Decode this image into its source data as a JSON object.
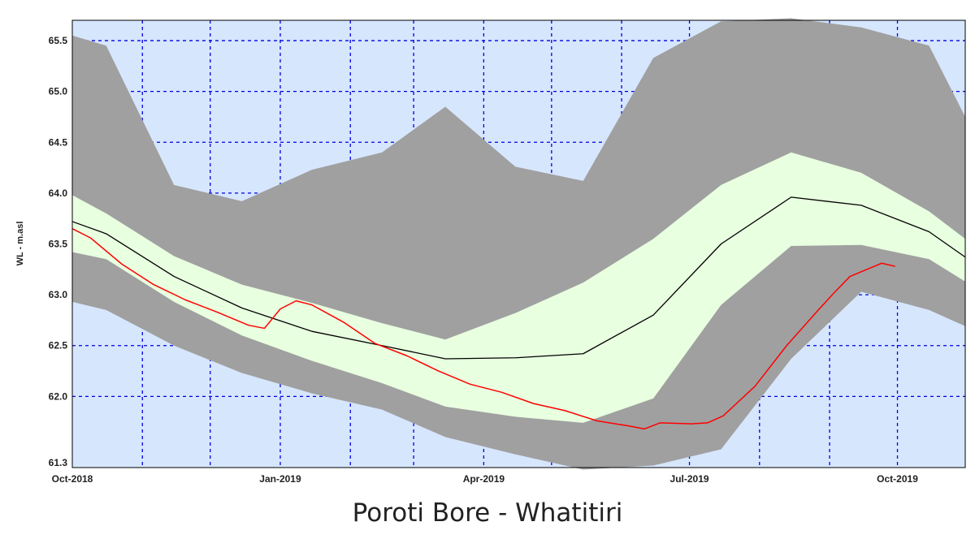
{
  "title": "Poroti Bore - Whatitiri",
  "chart_data": {
    "type": "area",
    "title": "Poroti Bore - Whatitiri",
    "xlabel": "",
    "ylabel": "WL - m.asl",
    "xlim": [
      "2018-10-01",
      "2019-10-31"
    ],
    "ylim": [
      61.3,
      65.7
    ],
    "grid": true,
    "colors": {
      "plot_bg": "#d6e6fd",
      "grid": "#0000e0",
      "outer_band": "#a0a0a0",
      "inner_band": "#e8ffe0",
      "median": "#000000",
      "current": "#ff0000"
    },
    "x_ticks": [
      {
        "date": "2018-10-01",
        "label": "Oct-2018"
      },
      {
        "date": "2019-01-01",
        "label": "Jan-2019"
      },
      {
        "date": "2019-04-01",
        "label": "Apr-2019"
      },
      {
        "date": "2019-07-01",
        "label": "Jul-2019"
      },
      {
        "date": "2019-10-01",
        "label": "Oct-2019"
      }
    ],
    "y_ticks": [
      61.3,
      62.0,
      62.5,
      63.0,
      63.5,
      64.0,
      64.5,
      65.0,
      65.5
    ],
    "y_tick_labels": [
      "61.3",
      "62.0",
      "62.5",
      "63.0",
      "63.5",
      "64.0",
      "64.5",
      "65.0",
      "65.5"
    ],
    "bands": [
      {
        "name": "outer",
        "dates": [
          "2018-10-01",
          "2018-10-16",
          "2018-11-15",
          "2018-12-15",
          "2019-01-15",
          "2019-02-15",
          "2019-03-15",
          "2019-04-15",
          "2019-05-15",
          "2019-06-15",
          "2019-07-15",
          "2019-08-15",
          "2019-09-15",
          "2019-10-15",
          "2019-10-31"
        ],
        "upper": [
          65.55,
          65.45,
          64.08,
          63.92,
          64.23,
          64.4,
          64.85,
          64.26,
          64.12,
          65.33,
          65.69,
          65.72,
          65.63,
          65.45,
          64.75
        ],
        "lower": [
          62.93,
          62.85,
          62.5,
          62.23,
          62.03,
          61.87,
          61.6,
          61.43,
          61.28,
          61.32,
          61.48,
          62.37,
          63.03,
          62.85,
          62.69
        ]
      },
      {
        "name": "inner",
        "dates": [
          "2018-10-01",
          "2018-10-16",
          "2018-11-15",
          "2018-12-15",
          "2019-01-15",
          "2019-02-15",
          "2019-03-15",
          "2019-04-15",
          "2019-05-15",
          "2019-06-15",
          "2019-07-15",
          "2019-08-15",
          "2019-09-15",
          "2019-10-15",
          "2019-10-31"
        ],
        "upper": [
          63.98,
          63.8,
          63.38,
          63.1,
          62.92,
          62.72,
          62.56,
          62.82,
          63.12,
          63.55,
          64.08,
          64.4,
          64.2,
          63.82,
          63.55
        ],
        "lower": [
          63.42,
          63.35,
          62.93,
          62.6,
          62.35,
          62.13,
          61.9,
          61.8,
          61.74,
          61.98,
          62.9,
          63.48,
          63.49,
          63.35,
          63.13
        ]
      }
    ],
    "series": [
      {
        "dates": [
          "2018-10-01",
          "2018-10-16",
          "2018-11-15",
          "2018-12-15",
          "2019-01-15",
          "2019-02-15",
          "2019-03-15",
          "2019-04-15",
          "2019-05-15",
          "2019-06-15",
          "2019-07-15",
          "2019-08-15",
          "2019-09-15",
          "2019-10-15",
          "2019-10-31"
        ],
        "values": [
          63.72,
          63.6,
          63.18,
          62.87,
          62.64,
          62.5,
          62.37,
          62.38,
          62.42,
          62.8,
          63.5,
          63.96,
          63.88,
          63.62,
          63.37
        ]
      },
      {
        "dates": [
          "2018-10-01",
          "2018-10-09",
          "2018-10-23",
          "2018-11-06",
          "2018-11-20",
          "2018-12-04",
          "2018-12-18",
          "2018-12-25",
          "2019-01-01",
          "2019-01-08",
          "2019-01-15",
          "2019-01-29",
          "2019-02-12",
          "2019-02-26",
          "2019-03-12",
          "2019-03-26",
          "2019-04-09",
          "2019-04-23",
          "2019-05-07",
          "2019-05-21",
          "2019-06-04",
          "2019-06-11",
          "2019-06-18",
          "2019-07-02",
          "2019-07-09",
          "2019-07-16",
          "2019-07-30",
          "2019-08-13",
          "2019-08-27",
          "2019-09-03",
          "2019-09-10",
          "2019-09-24",
          "2019-09-30"
        ],
        "values": [
          63.65,
          63.56,
          63.3,
          63.1,
          62.95,
          62.83,
          62.7,
          62.67,
          62.86,
          62.94,
          62.9,
          62.73,
          62.52,
          62.4,
          62.25,
          62.12,
          62.04,
          61.93,
          61.86,
          61.76,
          61.71,
          61.68,
          61.74,
          61.73,
          61.74,
          61.81,
          62.1,
          62.5,
          62.85,
          63.02,
          63.18,
          63.31,
          63.28
        ]
      }
    ]
  }
}
